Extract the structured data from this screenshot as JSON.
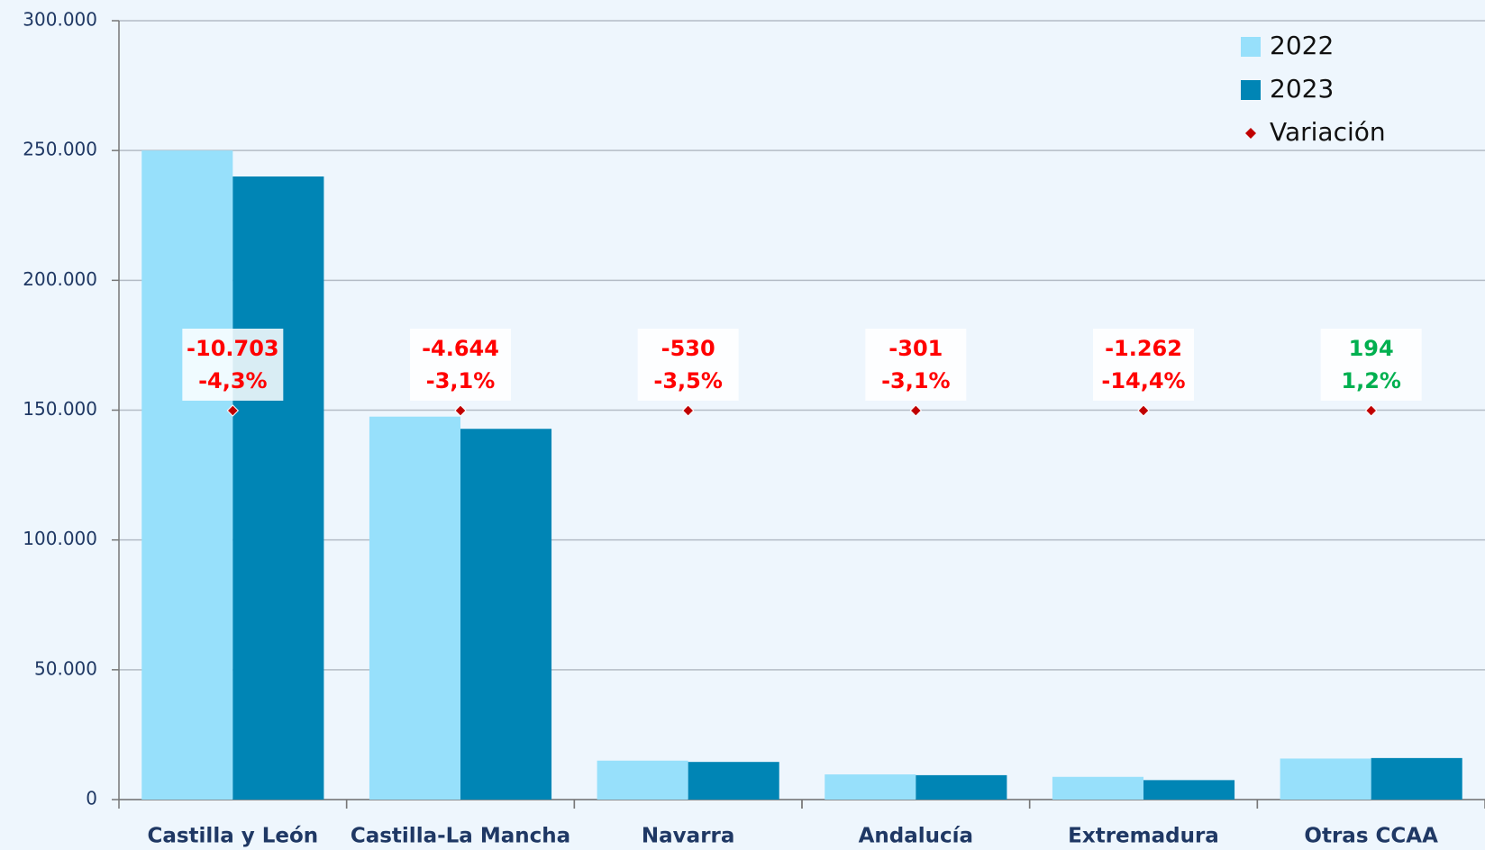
{
  "chart_data": {
    "type": "bar",
    "categories": [
      "Castilla y León",
      "Castilla-La Mancha",
      "Navarra",
      "Andalucía",
      "Extremadura",
      "Otras CCAA"
    ],
    "series": [
      {
        "name": "2022",
        "color": "#97e0fb",
        "values": [
          250000,
          147500,
          15000,
          9700,
          8750,
          15800
        ]
      },
      {
        "name": "2023",
        "color": "#0085b5",
        "values": [
          240000,
          142800,
          14500,
          9400,
          7500,
          16000
        ]
      }
    ],
    "variation": {
      "name": "Variación",
      "color": "#c00000",
      "values": [
        -10703,
        -4644,
        -530,
        -301,
        -1262,
        194
      ],
      "value_labels": [
        "-10.703",
        "-4.644",
        "-530",
        "-301",
        "-1.262",
        "194"
      ],
      "percent": [
        -4.3,
        -3.1,
        -3.5,
        -3.1,
        -14.4,
        1.2
      ],
      "percent_labels": [
        "-4,3%",
        "-3,1%",
        "-3,5%",
        "-3,1%",
        "-14,4%",
        "1,2%"
      ],
      "negative_color": "#ff0000",
      "positive_color": "#00b050"
    },
    "ylim": [
      0,
      300000
    ],
    "yticks": [
      {
        "value": 0,
        "label": "0"
      },
      {
        "value": 50000,
        "label": "50.000"
      },
      {
        "value": 100000,
        "label": "100.000"
      },
      {
        "value": 150000,
        "label": "150.000"
      },
      {
        "value": 200000,
        "label": "200.000"
      },
      {
        "value": 250000,
        "label": "250.000"
      },
      {
        "value": 300000,
        "label": "300.000"
      }
    ],
    "grid": true,
    "legend": "upper right"
  }
}
